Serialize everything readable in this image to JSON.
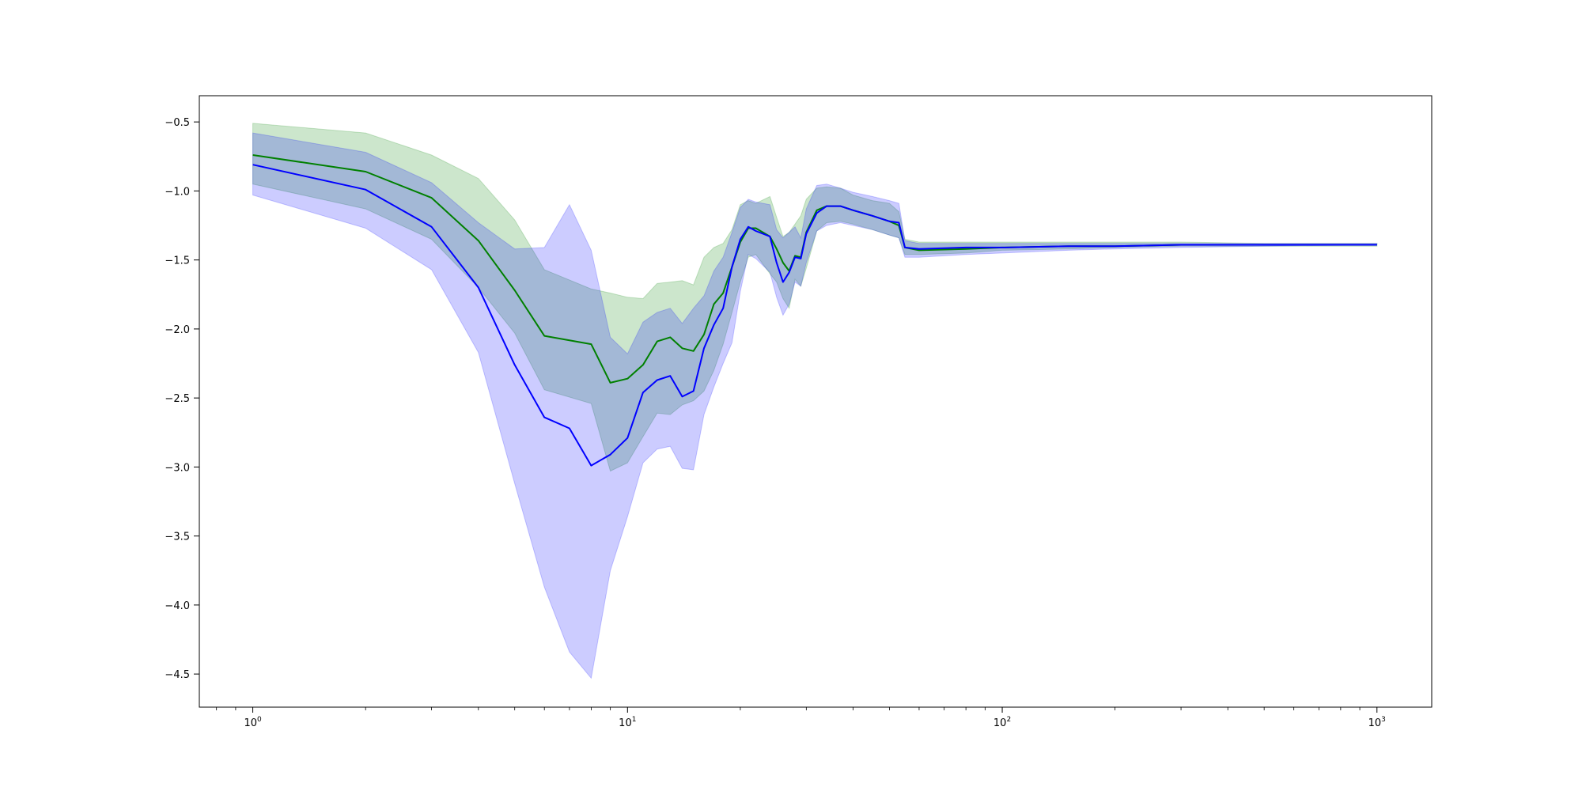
{
  "chart_data": {
    "type": "line",
    "title": "",
    "xlabel": "",
    "ylabel": "",
    "xscale": "log",
    "xlim": [
      0.72,
      1400
    ],
    "ylim": [
      -4.74,
      -0.31
    ],
    "grid": false,
    "legend": "none",
    "x_ticks": [
      {
        "value": 1,
        "base": "10",
        "exp": "0"
      },
      {
        "value": 10,
        "base": "10",
        "exp": "1"
      },
      {
        "value": 100,
        "base": "10",
        "exp": "2"
      },
      {
        "value": 1000,
        "base": "10",
        "exp": "3"
      }
    ],
    "y_ticks": [
      {
        "value": -0.5,
        "label": "−0.5"
      },
      {
        "value": -1.0,
        "label": "−1.0"
      },
      {
        "value": -1.5,
        "label": "−1.5"
      },
      {
        "value": -2.0,
        "label": "−2.0"
      },
      {
        "value": -2.5,
        "label": "−2.5"
      },
      {
        "value": -3.0,
        "label": "−3.0"
      },
      {
        "value": -3.5,
        "label": "−3.5"
      },
      {
        "value": -4.0,
        "label": "−4.0"
      },
      {
        "value": -4.5,
        "label": "−4.5"
      }
    ],
    "series": [
      {
        "color": "#008000",
        "band_color": "#008000",
        "band_opacity": 0.2,
        "x": [
          1,
          2,
          3,
          4,
          5,
          6,
          8,
          9,
          10,
          11,
          12,
          13,
          14,
          15,
          16,
          17,
          18,
          19,
          20,
          21,
          22,
          24,
          25,
          26,
          27,
          28,
          29,
          30,
          32,
          34,
          37,
          40,
          45,
          50,
          53,
          55,
          60,
          80,
          100,
          150,
          200,
          300,
          500,
          1000
        ],
        "y": [
          -0.74,
          -0.86,
          -1.05,
          -1.36,
          -1.72,
          -2.05,
          -2.11,
          -2.39,
          -2.36,
          -2.26,
          -2.09,
          -2.06,
          -2.14,
          -2.16,
          -2.04,
          -1.82,
          -1.74,
          -1.55,
          -1.37,
          -1.27,
          -1.27,
          -1.33,
          -1.42,
          -1.52,
          -1.58,
          -1.47,
          -1.48,
          -1.3,
          -1.14,
          -1.11,
          -1.11,
          -1.14,
          -1.18,
          -1.22,
          -1.25,
          -1.41,
          -1.43,
          -1.42,
          -1.41,
          -1.4,
          -1.4,
          -1.39,
          -1.39,
          -1.39
        ],
        "upper": [
          -0.51,
          -0.58,
          -0.74,
          -0.91,
          -1.21,
          -1.57,
          -1.71,
          -1.74,
          -1.77,
          -1.78,
          -1.67,
          -1.66,
          -1.65,
          -1.68,
          -1.48,
          -1.41,
          -1.38,
          -1.28,
          -1.1,
          -1.07,
          -1.09,
          -1.04,
          -1.19,
          -1.33,
          -1.3,
          -1.24,
          -1.18,
          -1.06,
          -0.98,
          -0.97,
          -0.98,
          -1.03,
          -1.07,
          -1.09,
          -1.15,
          -1.35,
          -1.37,
          -1.37,
          -1.37,
          -1.37,
          -1.37,
          -1.37,
          -1.38,
          -1.38
        ],
        "lower": [
          -0.95,
          -1.13,
          -1.35,
          -1.7,
          -2.03,
          -2.44,
          -2.54,
          -3.03,
          -2.97,
          -2.78,
          -2.61,
          -2.62,
          -2.55,
          -2.52,
          -2.45,
          -2.3,
          -2.11,
          -1.88,
          -1.66,
          -1.48,
          -1.46,
          -1.6,
          -1.66,
          -1.78,
          -1.85,
          -1.64,
          -1.69,
          -1.56,
          -1.29,
          -1.23,
          -1.22,
          -1.24,
          -1.28,
          -1.32,
          -1.34,
          -1.46,
          -1.46,
          -1.45,
          -1.43,
          -1.42,
          -1.41,
          -1.4,
          -1.4,
          -1.4
        ]
      },
      {
        "color": "#0000ff",
        "band_color": "#0000ff",
        "band_opacity": 0.2,
        "x": [
          1,
          2,
          3,
          4,
          5,
          6,
          7,
          8,
          9,
          10,
          11,
          12,
          13,
          14,
          15,
          16,
          17,
          18,
          19,
          20,
          21,
          22,
          24,
          25,
          26,
          27,
          28,
          29,
          30,
          32,
          34,
          37,
          40,
          45,
          50,
          53,
          55,
          60,
          80,
          100,
          150,
          200,
          300,
          500,
          1000
        ],
        "y": [
          -0.81,
          -0.99,
          -1.26,
          -1.7,
          -2.26,
          -2.64,
          -2.72,
          -2.99,
          -2.91,
          -2.79,
          -2.46,
          -2.37,
          -2.34,
          -2.49,
          -2.45,
          -2.14,
          -1.97,
          -1.85,
          -1.55,
          -1.35,
          -1.26,
          -1.29,
          -1.33,
          -1.52,
          -1.66,
          -1.59,
          -1.48,
          -1.49,
          -1.31,
          -1.16,
          -1.11,
          -1.11,
          -1.14,
          -1.18,
          -1.22,
          -1.23,
          -1.41,
          -1.42,
          -1.41,
          -1.41,
          -1.4,
          -1.4,
          -1.39,
          -1.39,
          -1.39
        ],
        "upper": [
          -0.58,
          -0.72,
          -0.94,
          -1.23,
          -1.42,
          -1.41,
          -1.1,
          -1.43,
          -2.06,
          -2.18,
          -1.95,
          -1.88,
          -1.85,
          -1.96,
          -1.85,
          -1.76,
          -1.58,
          -1.48,
          -1.3,
          -1.12,
          -1.06,
          -1.08,
          -1.1,
          -1.28,
          -1.34,
          -1.3,
          -1.26,
          -1.34,
          -1.13,
          -0.96,
          -0.95,
          -0.98,
          -1.01,
          -1.04,
          -1.07,
          -1.09,
          -1.36,
          -1.38,
          -1.38,
          -1.38,
          -1.38,
          -1.38,
          -1.38,
          -1.38,
          -1.38
        ],
        "lower": [
          -1.03,
          -1.27,
          -1.57,
          -2.17,
          -3.12,
          -3.87,
          -4.34,
          -4.53,
          -3.75,
          -3.36,
          -2.97,
          -2.87,
          -2.85,
          -3.01,
          -3.02,
          -2.62,
          -2.42,
          -2.25,
          -2.1,
          -1.73,
          -1.46,
          -1.49,
          -1.59,
          -1.77,
          -1.9,
          -1.82,
          -1.66,
          -1.69,
          -1.52,
          -1.29,
          -1.25,
          -1.23,
          -1.25,
          -1.28,
          -1.32,
          -1.34,
          -1.48,
          -1.48,
          -1.46,
          -1.45,
          -1.43,
          -1.42,
          -1.41,
          -1.4,
          -1.39
        ]
      }
    ]
  }
}
